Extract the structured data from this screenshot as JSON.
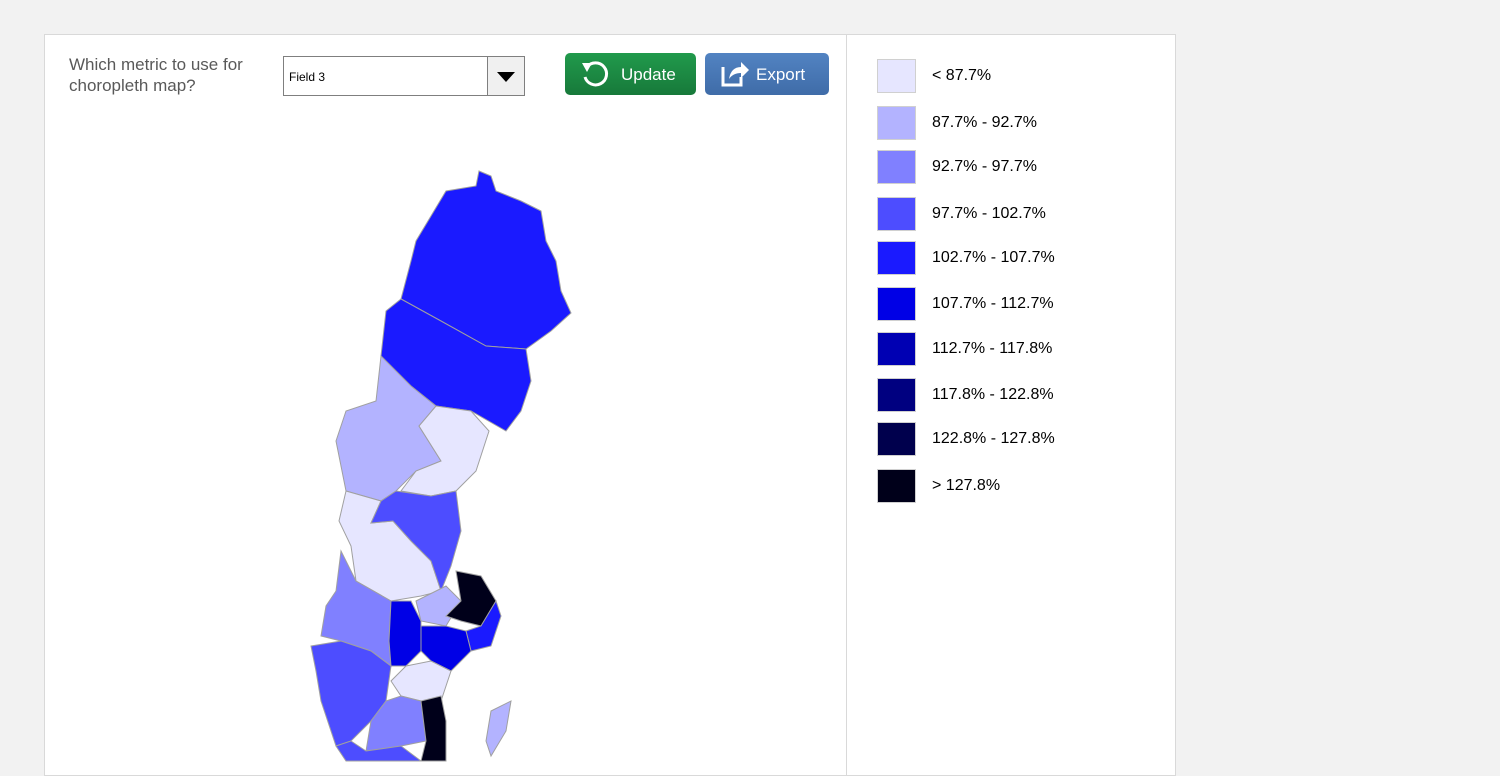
{
  "metric_prompt": "Which metric to use for choropleth map?",
  "dropdown": {
    "value": "Field 3"
  },
  "buttons": [
    "Update",
    "Export"
  ],
  "legend": [
    {
      "label": "< 87.7%",
      "color": "#e6e6ff"
    },
    {
      "label": "87.7% - 92.7%",
      "color": "#b3b3ff"
    },
    {
      "label": "92.7% - 97.7%",
      "color": "#8080ff"
    },
    {
      "label": "97.7% - 102.7%",
      "color": "#4d4dff"
    },
    {
      "label": "102.7% - 107.7%",
      "color": "#1a1aff"
    },
    {
      "label": "107.7% - 112.7%",
      "color": "#0000e6"
    },
    {
      "label": "112.7% - 117.8%",
      "color": "#0000b3"
    },
    {
      "label": "117.8% - 122.8%",
      "color": "#000080"
    },
    {
      "label": "122.8% - 127.8%",
      "color": "#00004d"
    },
    {
      "label": "> 127.8%",
      "color": "#00001a"
    }
  ]
}
